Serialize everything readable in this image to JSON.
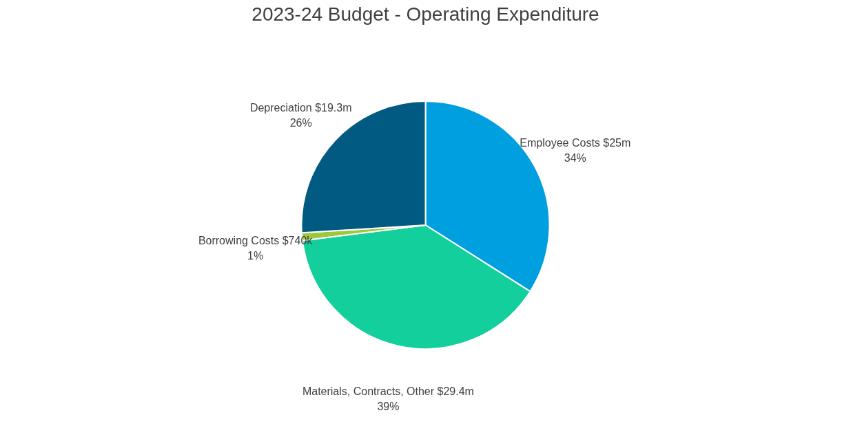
{
  "chart_data": {
    "type": "pie",
    "title": "2023-24 Budget - Operating Expenditure",
    "categories": [
      "Employee Costs $25m",
      "Materials, Contracts, Other $29.4m",
      "Borrowing Costs $740k",
      "Depreciation $19.3m"
    ],
    "values": [
      34,
      39,
      1,
      26
    ],
    "value_labels": [
      "34%",
      "39%",
      "1%",
      "26%"
    ],
    "colors": [
      "#009fe0",
      "#12cf9c",
      "#9cc83c",
      "#005a82"
    ]
  }
}
